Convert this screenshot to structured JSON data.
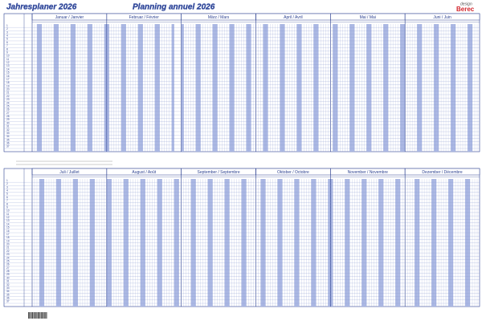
{
  "header": {
    "title_de": "Jahresplaner 2026",
    "title_fr": "Planning annuel 2026",
    "brand_small": "design",
    "brand": "Berec"
  },
  "halves": [
    {
      "months": [
        "Januar  /  Janvier",
        "Februar  /  Février",
        "März  /  Mars",
        "April  /  Avril",
        "Mai  /  Mai",
        "Juni  /  Juin"
      ]
    },
    {
      "months": [
        "Juli  /  Juillet",
        "August  /  Août",
        "September  /  Septembre",
        "Oktober  /  Octobre",
        "November  /  Novembre",
        "Dezember  /  Décembre"
      ]
    }
  ],
  "rows": [
    1,
    2,
    3,
    4,
    5,
    6,
    7,
    8,
    9,
    10,
    11,
    12,
    13,
    14,
    15,
    16,
    17,
    18,
    19,
    20,
    21,
    22,
    23,
    24,
    25,
    26,
    27,
    28,
    29,
    30,
    31,
    32,
    33,
    34,
    35,
    36,
    37
  ]
}
